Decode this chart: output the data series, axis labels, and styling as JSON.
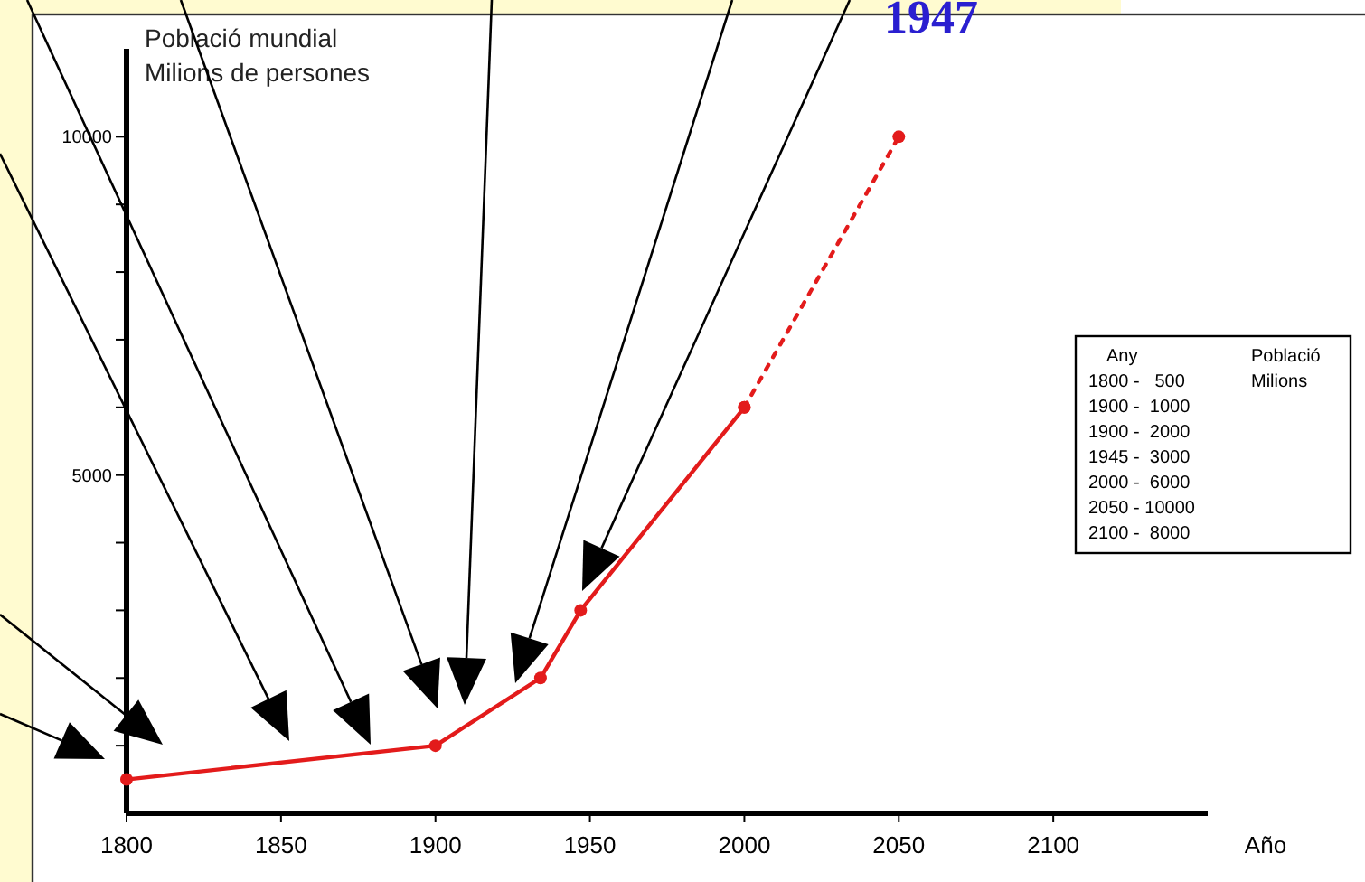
{
  "chart_data": {
    "type": "line",
    "xlabel": "Año",
    "ylabel": "Població mundial\nMilions de persones",
    "annotations": [
      "1947",
      "Any",
      "Població",
      "Milions",
      "1800 -   500",
      "1900 -  1000",
      "1900 -  2000",
      "1945 -  3000",
      "2000 -  6000",
      "2050 - 10000",
      "2100 -  8000"
    ],
    "series": [
      {
        "color": "#e31b1b",
        "x": [
          1800,
          1900,
          1934,
          1947,
          2000
        ],
        "values": [
          500,
          1000,
          2000,
          3000,
          6000
        ]
      },
      {
        "color": "#e31b1b",
        "line_style": "dotted",
        "x": [
          2000,
          2050
        ],
        "values": [
          6000,
          10000
        ]
      }
    ],
    "xlim": [
      1800,
      2150
    ],
    "xticks": [
      1800,
      1850,
      1900,
      1950,
      2000,
      2050,
      2100
    ],
    "ylim": [
      0,
      11300
    ],
    "yticks": [
      {
        "value": 1000,
        "label": null
      },
      {
        "value": 2000,
        "label": null
      },
      {
        "value": 3000,
        "label": null
      },
      {
        "value": 4000,
        "label": null
      },
      5000,
      {
        "value": 6000,
        "label": null
      },
      {
        "value": 7000,
        "label": null
      },
      {
        "value": 8000,
        "label": null
      },
      {
        "value": 9000,
        "label": null
      },
      10000
    ],
    "marker": "circle",
    "line_style": "solid",
    "grid": false
  }
}
